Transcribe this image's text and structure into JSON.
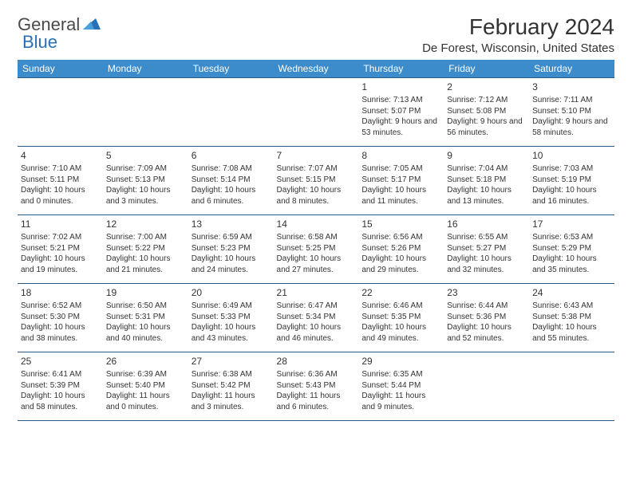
{
  "logo": {
    "text1": "General",
    "text2": "Blue"
  },
  "colors": {
    "header_bg": "#3c8ccb",
    "header_text": "#ffffff",
    "border": "#2c5a86",
    "brand_blue": "#2970b8",
    "text": "#333333"
  },
  "title": "February 2024",
  "location": "De Forest, Wisconsin, United States",
  "weekdays": [
    "Sunday",
    "Monday",
    "Tuesday",
    "Wednesday",
    "Thursday",
    "Friday",
    "Saturday"
  ],
  "weeks": [
    [
      null,
      null,
      null,
      null,
      {
        "d": "1",
        "sr": "7:13 AM",
        "ss": "5:07 PM",
        "dl": "9 hours and 53 minutes."
      },
      {
        "d": "2",
        "sr": "7:12 AM",
        "ss": "5:08 PM",
        "dl": "9 hours and 56 minutes."
      },
      {
        "d": "3",
        "sr": "7:11 AM",
        "ss": "5:10 PM",
        "dl": "9 hours and 58 minutes."
      }
    ],
    [
      {
        "d": "4",
        "sr": "7:10 AM",
        "ss": "5:11 PM",
        "dl": "10 hours and 0 minutes."
      },
      {
        "d": "5",
        "sr": "7:09 AM",
        "ss": "5:13 PM",
        "dl": "10 hours and 3 minutes."
      },
      {
        "d": "6",
        "sr": "7:08 AM",
        "ss": "5:14 PM",
        "dl": "10 hours and 6 minutes."
      },
      {
        "d": "7",
        "sr": "7:07 AM",
        "ss": "5:15 PM",
        "dl": "10 hours and 8 minutes."
      },
      {
        "d": "8",
        "sr": "7:05 AM",
        "ss": "5:17 PM",
        "dl": "10 hours and 11 minutes."
      },
      {
        "d": "9",
        "sr": "7:04 AM",
        "ss": "5:18 PM",
        "dl": "10 hours and 13 minutes."
      },
      {
        "d": "10",
        "sr": "7:03 AM",
        "ss": "5:19 PM",
        "dl": "10 hours and 16 minutes."
      }
    ],
    [
      {
        "d": "11",
        "sr": "7:02 AM",
        "ss": "5:21 PM",
        "dl": "10 hours and 19 minutes."
      },
      {
        "d": "12",
        "sr": "7:00 AM",
        "ss": "5:22 PM",
        "dl": "10 hours and 21 minutes."
      },
      {
        "d": "13",
        "sr": "6:59 AM",
        "ss": "5:23 PM",
        "dl": "10 hours and 24 minutes."
      },
      {
        "d": "14",
        "sr": "6:58 AM",
        "ss": "5:25 PM",
        "dl": "10 hours and 27 minutes."
      },
      {
        "d": "15",
        "sr": "6:56 AM",
        "ss": "5:26 PM",
        "dl": "10 hours and 29 minutes."
      },
      {
        "d": "16",
        "sr": "6:55 AM",
        "ss": "5:27 PM",
        "dl": "10 hours and 32 minutes."
      },
      {
        "d": "17",
        "sr": "6:53 AM",
        "ss": "5:29 PM",
        "dl": "10 hours and 35 minutes."
      }
    ],
    [
      {
        "d": "18",
        "sr": "6:52 AM",
        "ss": "5:30 PM",
        "dl": "10 hours and 38 minutes."
      },
      {
        "d": "19",
        "sr": "6:50 AM",
        "ss": "5:31 PM",
        "dl": "10 hours and 40 minutes."
      },
      {
        "d": "20",
        "sr": "6:49 AM",
        "ss": "5:33 PM",
        "dl": "10 hours and 43 minutes."
      },
      {
        "d": "21",
        "sr": "6:47 AM",
        "ss": "5:34 PM",
        "dl": "10 hours and 46 minutes."
      },
      {
        "d": "22",
        "sr": "6:46 AM",
        "ss": "5:35 PM",
        "dl": "10 hours and 49 minutes."
      },
      {
        "d": "23",
        "sr": "6:44 AM",
        "ss": "5:36 PM",
        "dl": "10 hours and 52 minutes."
      },
      {
        "d": "24",
        "sr": "6:43 AM",
        "ss": "5:38 PM",
        "dl": "10 hours and 55 minutes."
      }
    ],
    [
      {
        "d": "25",
        "sr": "6:41 AM",
        "ss": "5:39 PM",
        "dl": "10 hours and 58 minutes."
      },
      {
        "d": "26",
        "sr": "6:39 AM",
        "ss": "5:40 PM",
        "dl": "11 hours and 0 minutes."
      },
      {
        "d": "27",
        "sr": "6:38 AM",
        "ss": "5:42 PM",
        "dl": "11 hours and 3 minutes."
      },
      {
        "d": "28",
        "sr": "6:36 AM",
        "ss": "5:43 PM",
        "dl": "11 hours and 6 minutes."
      },
      {
        "d": "29",
        "sr": "6:35 AM",
        "ss": "5:44 PM",
        "dl": "11 hours and 9 minutes."
      },
      null,
      null
    ]
  ],
  "labels": {
    "sunrise": "Sunrise: ",
    "sunset": "Sunset: ",
    "daylight": "Daylight: "
  }
}
